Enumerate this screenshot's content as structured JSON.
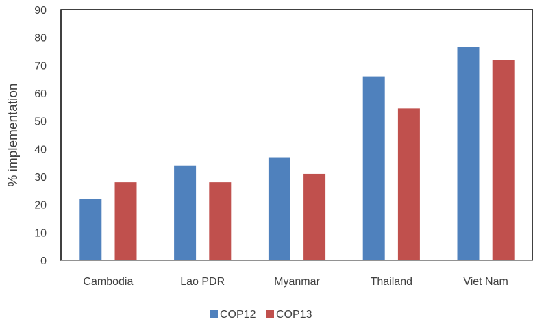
{
  "chart_data": {
    "type": "bar",
    "title": "",
    "xlabel": "",
    "ylabel": "% implementation",
    "ylim": [
      0,
      90
    ],
    "yticks": [
      0,
      10,
      20,
      30,
      40,
      50,
      60,
      70,
      80,
      90
    ],
    "categories": [
      "Cambodia",
      "Lao PDR",
      "Myanmar",
      "Thailand",
      "Viet Nam"
    ],
    "series": [
      {
        "name": "COP12",
        "color": "#4F81BD",
        "values": [
          22,
          34,
          37,
          66,
          76.5
        ]
      },
      {
        "name": "COP13",
        "color": "#C0504D",
        "values": [
          28,
          28,
          31,
          54.5,
          72
        ]
      }
    ],
    "grid": false,
    "legend": "bottom"
  }
}
